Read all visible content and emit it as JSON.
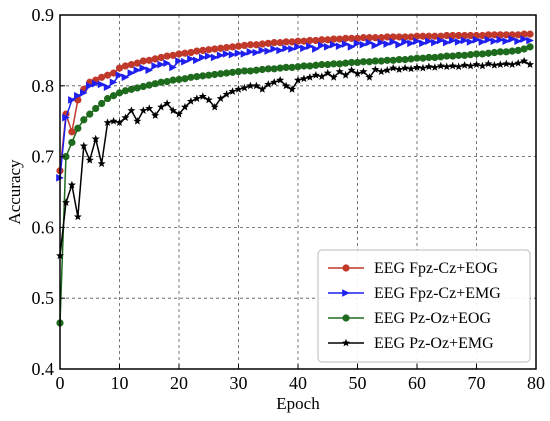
{
  "chart_data": {
    "type": "line",
    "title": "",
    "xlabel": "Epoch",
    "ylabel": "Accuracy",
    "xlim": [
      0,
      80
    ],
    "ylim": [
      0.4,
      0.9
    ],
    "xticks": [
      0,
      10,
      20,
      30,
      40,
      50,
      60,
      70,
      80
    ],
    "yticks": [
      0.4,
      0.5,
      0.6,
      0.7,
      0.8,
      0.9
    ],
    "xtick_labels": [
      "0",
      "10",
      "20",
      "30",
      "40",
      "50",
      "60",
      "70",
      "80"
    ],
    "ytick_labels": [
      "0.4",
      "0.5",
      "0.6",
      "0.7",
      "0.8",
      "0.9"
    ],
    "grid": true,
    "grid_style": "dashed",
    "legend_position": "lower-right",
    "x": [
      0,
      1,
      2,
      3,
      4,
      5,
      6,
      7,
      8,
      9,
      10,
      11,
      12,
      13,
      14,
      15,
      16,
      17,
      18,
      19,
      20,
      21,
      22,
      23,
      24,
      25,
      26,
      27,
      28,
      29,
      30,
      31,
      32,
      33,
      34,
      35,
      36,
      37,
      38,
      39,
      40,
      41,
      42,
      43,
      44,
      45,
      46,
      47,
      48,
      49,
      50,
      51,
      52,
      53,
      54,
      55,
      56,
      57,
      58,
      59,
      60,
      61,
      62,
      63,
      64,
      65,
      66,
      67,
      68,
      69,
      70,
      71,
      72,
      73,
      74,
      75,
      76,
      77,
      78,
      79
    ],
    "series": [
      {
        "name": "EEG Fpz-Cz+EOG",
        "color": "#c0392b",
        "line_color": "#c0392b",
        "marker": "circle",
        "values": [
          0.68,
          0.76,
          0.735,
          0.78,
          0.795,
          0.805,
          0.808,
          0.812,
          0.815,
          0.818,
          0.825,
          0.828,
          0.83,
          0.832,
          0.835,
          0.836,
          0.838,
          0.84,
          0.842,
          0.843,
          0.845,
          0.846,
          0.847,
          0.849,
          0.85,
          0.851,
          0.852,
          0.853,
          0.854,
          0.855,
          0.856,
          0.857,
          0.858,
          0.858,
          0.859,
          0.86,
          0.861,
          0.861,
          0.862,
          0.862,
          0.863,
          0.863,
          0.864,
          0.864,
          0.865,
          0.865,
          0.866,
          0.866,
          0.867,
          0.867,
          0.867,
          0.868,
          0.868,
          0.868,
          0.868,
          0.869,
          0.869,
          0.869,
          0.869,
          0.869,
          0.87,
          0.87,
          0.87,
          0.87,
          0.87,
          0.871,
          0.871,
          0.871,
          0.871,
          0.871,
          0.871,
          0.871,
          0.872,
          0.872,
          0.872,
          0.872,
          0.872,
          0.872,
          0.873,
          0.873
        ]
      },
      {
        "name": "EEG Fpz-Cz+EMG",
        "color": "#1f1ff0",
        "line_color": "#1f1ff0",
        "marker": "triangle-right",
        "values": [
          0.67,
          0.755,
          0.78,
          0.786,
          0.79,
          0.8,
          0.803,
          0.802,
          0.798,
          0.805,
          0.815,
          0.812,
          0.818,
          0.822,
          0.825,
          0.822,
          0.828,
          0.83,
          0.832,
          0.826,
          0.835,
          0.834,
          0.838,
          0.836,
          0.84,
          0.842,
          0.84,
          0.843,
          0.845,
          0.844,
          0.846,
          0.845,
          0.848,
          0.847,
          0.85,
          0.849,
          0.852,
          0.85,
          0.853,
          0.852,
          0.855,
          0.853,
          0.856,
          0.852,
          0.857,
          0.855,
          0.858,
          0.856,
          0.859,
          0.855,
          0.86,
          0.858,
          0.861,
          0.857,
          0.861,
          0.859,
          0.862,
          0.858,
          0.862,
          0.86,
          0.863,
          0.86,
          0.863,
          0.861,
          0.864,
          0.861,
          0.864,
          0.862,
          0.864,
          0.862,
          0.865,
          0.862,
          0.865,
          0.863,
          0.865,
          0.863,
          0.866,
          0.863,
          0.866,
          0.864
        ]
      },
      {
        "name": "EEG Pz-Oz+EOG",
        "color": "#1e6b1e",
        "line_color": "#1e6b1e",
        "marker": "circle",
        "values": [
          0.465,
          0.7,
          0.72,
          0.74,
          0.752,
          0.76,
          0.768,
          0.775,
          0.782,
          0.786,
          0.79,
          0.793,
          0.795,
          0.797,
          0.799,
          0.801,
          0.803,
          0.805,
          0.806,
          0.808,
          0.809,
          0.81,
          0.812,
          0.813,
          0.814,
          0.815,
          0.816,
          0.817,
          0.818,
          0.819,
          0.82,
          0.821,
          0.821,
          0.822,
          0.823,
          0.824,
          0.824,
          0.825,
          0.826,
          0.826,
          0.827,
          0.828,
          0.828,
          0.829,
          0.83,
          0.83,
          0.831,
          0.831,
          0.832,
          0.833,
          0.833,
          0.834,
          0.834,
          0.835,
          0.835,
          0.836,
          0.836,
          0.837,
          0.837,
          0.838,
          0.839,
          0.839,
          0.84,
          0.84,
          0.841,
          0.842,
          0.842,
          0.843,
          0.843,
          0.844,
          0.845,
          0.845,
          0.846,
          0.847,
          0.848,
          0.848,
          0.849,
          0.85,
          0.852,
          0.855
        ]
      },
      {
        "name": "EEG Pz-Oz+EMG",
        "color": "#000000",
        "line_color": "#000000",
        "marker": "star",
        "values": [
          0.56,
          0.635,
          0.66,
          0.615,
          0.715,
          0.695,
          0.725,
          0.69,
          0.748,
          0.75,
          0.748,
          0.755,
          0.765,
          0.75,
          0.765,
          0.768,
          0.758,
          0.77,
          0.775,
          0.765,
          0.76,
          0.77,
          0.778,
          0.782,
          0.785,
          0.78,
          0.77,
          0.782,
          0.788,
          0.792,
          0.795,
          0.797,
          0.8,
          0.8,
          0.795,
          0.802,
          0.805,
          0.808,
          0.8,
          0.795,
          0.808,
          0.81,
          0.812,
          0.815,
          0.813,
          0.818,
          0.812,
          0.82,
          0.815,
          0.822,
          0.817,
          0.82,
          0.812,
          0.823,
          0.82,
          0.822,
          0.825,
          0.823,
          0.825,
          0.824,
          0.826,
          0.825,
          0.827,
          0.826,
          0.828,
          0.827,
          0.828,
          0.827,
          0.829,
          0.828,
          0.83,
          0.828,
          0.831,
          0.829,
          0.83,
          0.831,
          0.83,
          0.832,
          0.835,
          0.83
        ]
      }
    ]
  }
}
